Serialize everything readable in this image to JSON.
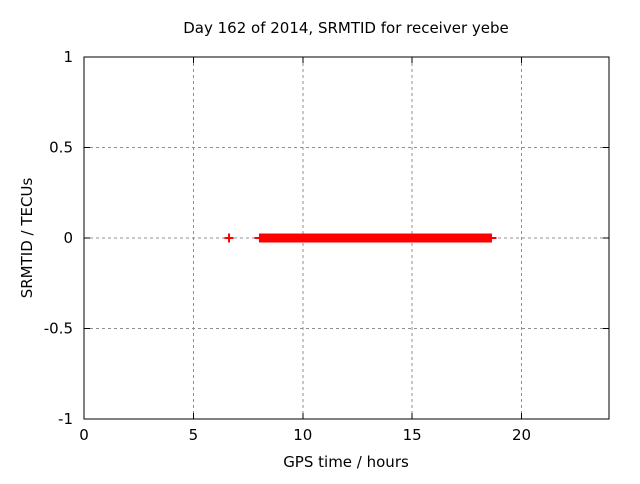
{
  "window": {
    "background": "#ffffff"
  },
  "chart_data": {
    "type": "scatter",
    "marker": "plus",
    "title": "Day 162 of 2014, SRMTID for receiver yebe",
    "xlabel": "GPS time / hours",
    "ylabel": "SRMTID / TECUs",
    "xlim": [
      0,
      24
    ],
    "ylim": [
      -1,
      1
    ],
    "xticks": [
      0,
      5,
      10,
      15,
      20
    ],
    "xtick_labels": [
      "0",
      "5",
      "10",
      "15",
      "20"
    ],
    "yticks": [
      -1,
      -0.5,
      0,
      0.5,
      1
    ],
    "ytick_labels": [
      "-1",
      "-0.5",
      "0",
      "0.5",
      "1"
    ],
    "grid": true,
    "legend": "none",
    "colors": {
      "data": "#ff0000",
      "grid": "#909090",
      "axis": "#000000",
      "text": "#000000"
    },
    "series": [
      {
        "name": "SRMTID",
        "color": "#ff0000",
        "isolated_points": [
          {
            "x": 6.63,
            "y": 0
          }
        ],
        "dense_segments": [
          {
            "x_start": 8.0,
            "x_end": 18.65,
            "y": 0
          }
        ]
      }
    ]
  }
}
